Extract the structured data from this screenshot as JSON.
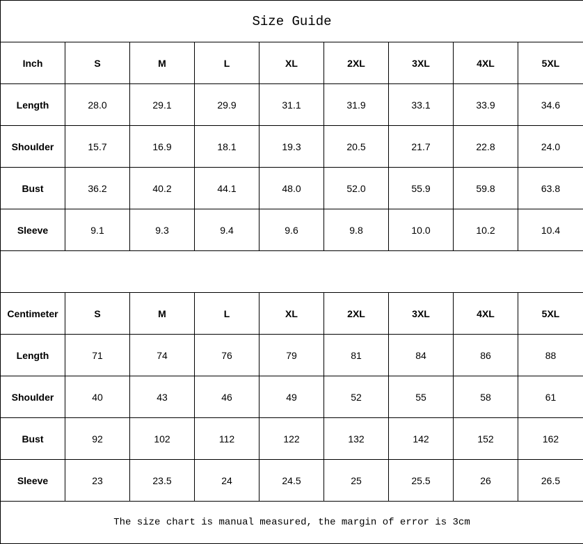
{
  "title": "Size Guide",
  "sizes": [
    "S",
    "M",
    "L",
    "XL",
    "2XL",
    "3XL",
    "4XL",
    "5XL"
  ],
  "inch": {
    "unit_label": "Inch",
    "rows": [
      {
        "label": "Length",
        "values": [
          "28.0",
          "29.1",
          "29.9",
          "31.1",
          "31.9",
          "33.1",
          "33.9",
          "34.6"
        ]
      },
      {
        "label": "Shoulder",
        "values": [
          "15.7",
          "16.9",
          "18.1",
          "19.3",
          "20.5",
          "21.7",
          "22.8",
          "24.0"
        ]
      },
      {
        "label": "Bust",
        "values": [
          "36.2",
          "40.2",
          "44.1",
          "48.0",
          "52.0",
          "55.9",
          "59.8",
          "63.8"
        ]
      },
      {
        "label": "Sleeve",
        "values": [
          "9.1",
          "9.3",
          "9.4",
          "9.6",
          "9.8",
          "10.0",
          "10.2",
          "10.4"
        ]
      }
    ]
  },
  "cm": {
    "unit_label": "Centimeter",
    "rows": [
      {
        "label": "Length",
        "values": [
          "71",
          "74",
          "76",
          "79",
          "81",
          "84",
          "86",
          "88"
        ]
      },
      {
        "label": "Shoulder",
        "values": [
          "40",
          "43",
          "46",
          "49",
          "52",
          "55",
          "58",
          "61"
        ]
      },
      {
        "label": "Bust",
        "values": [
          "92",
          "102",
          "112",
          "122",
          "132",
          "142",
          "152",
          "162"
        ]
      },
      {
        "label": "Sleeve",
        "values": [
          "23",
          "23.5",
          "24",
          "24.5",
          "25",
          "25.5",
          "26",
          "26.5"
        ]
      }
    ]
  },
  "footer": "The size chart is manual measured, the margin of error is 3cm"
}
